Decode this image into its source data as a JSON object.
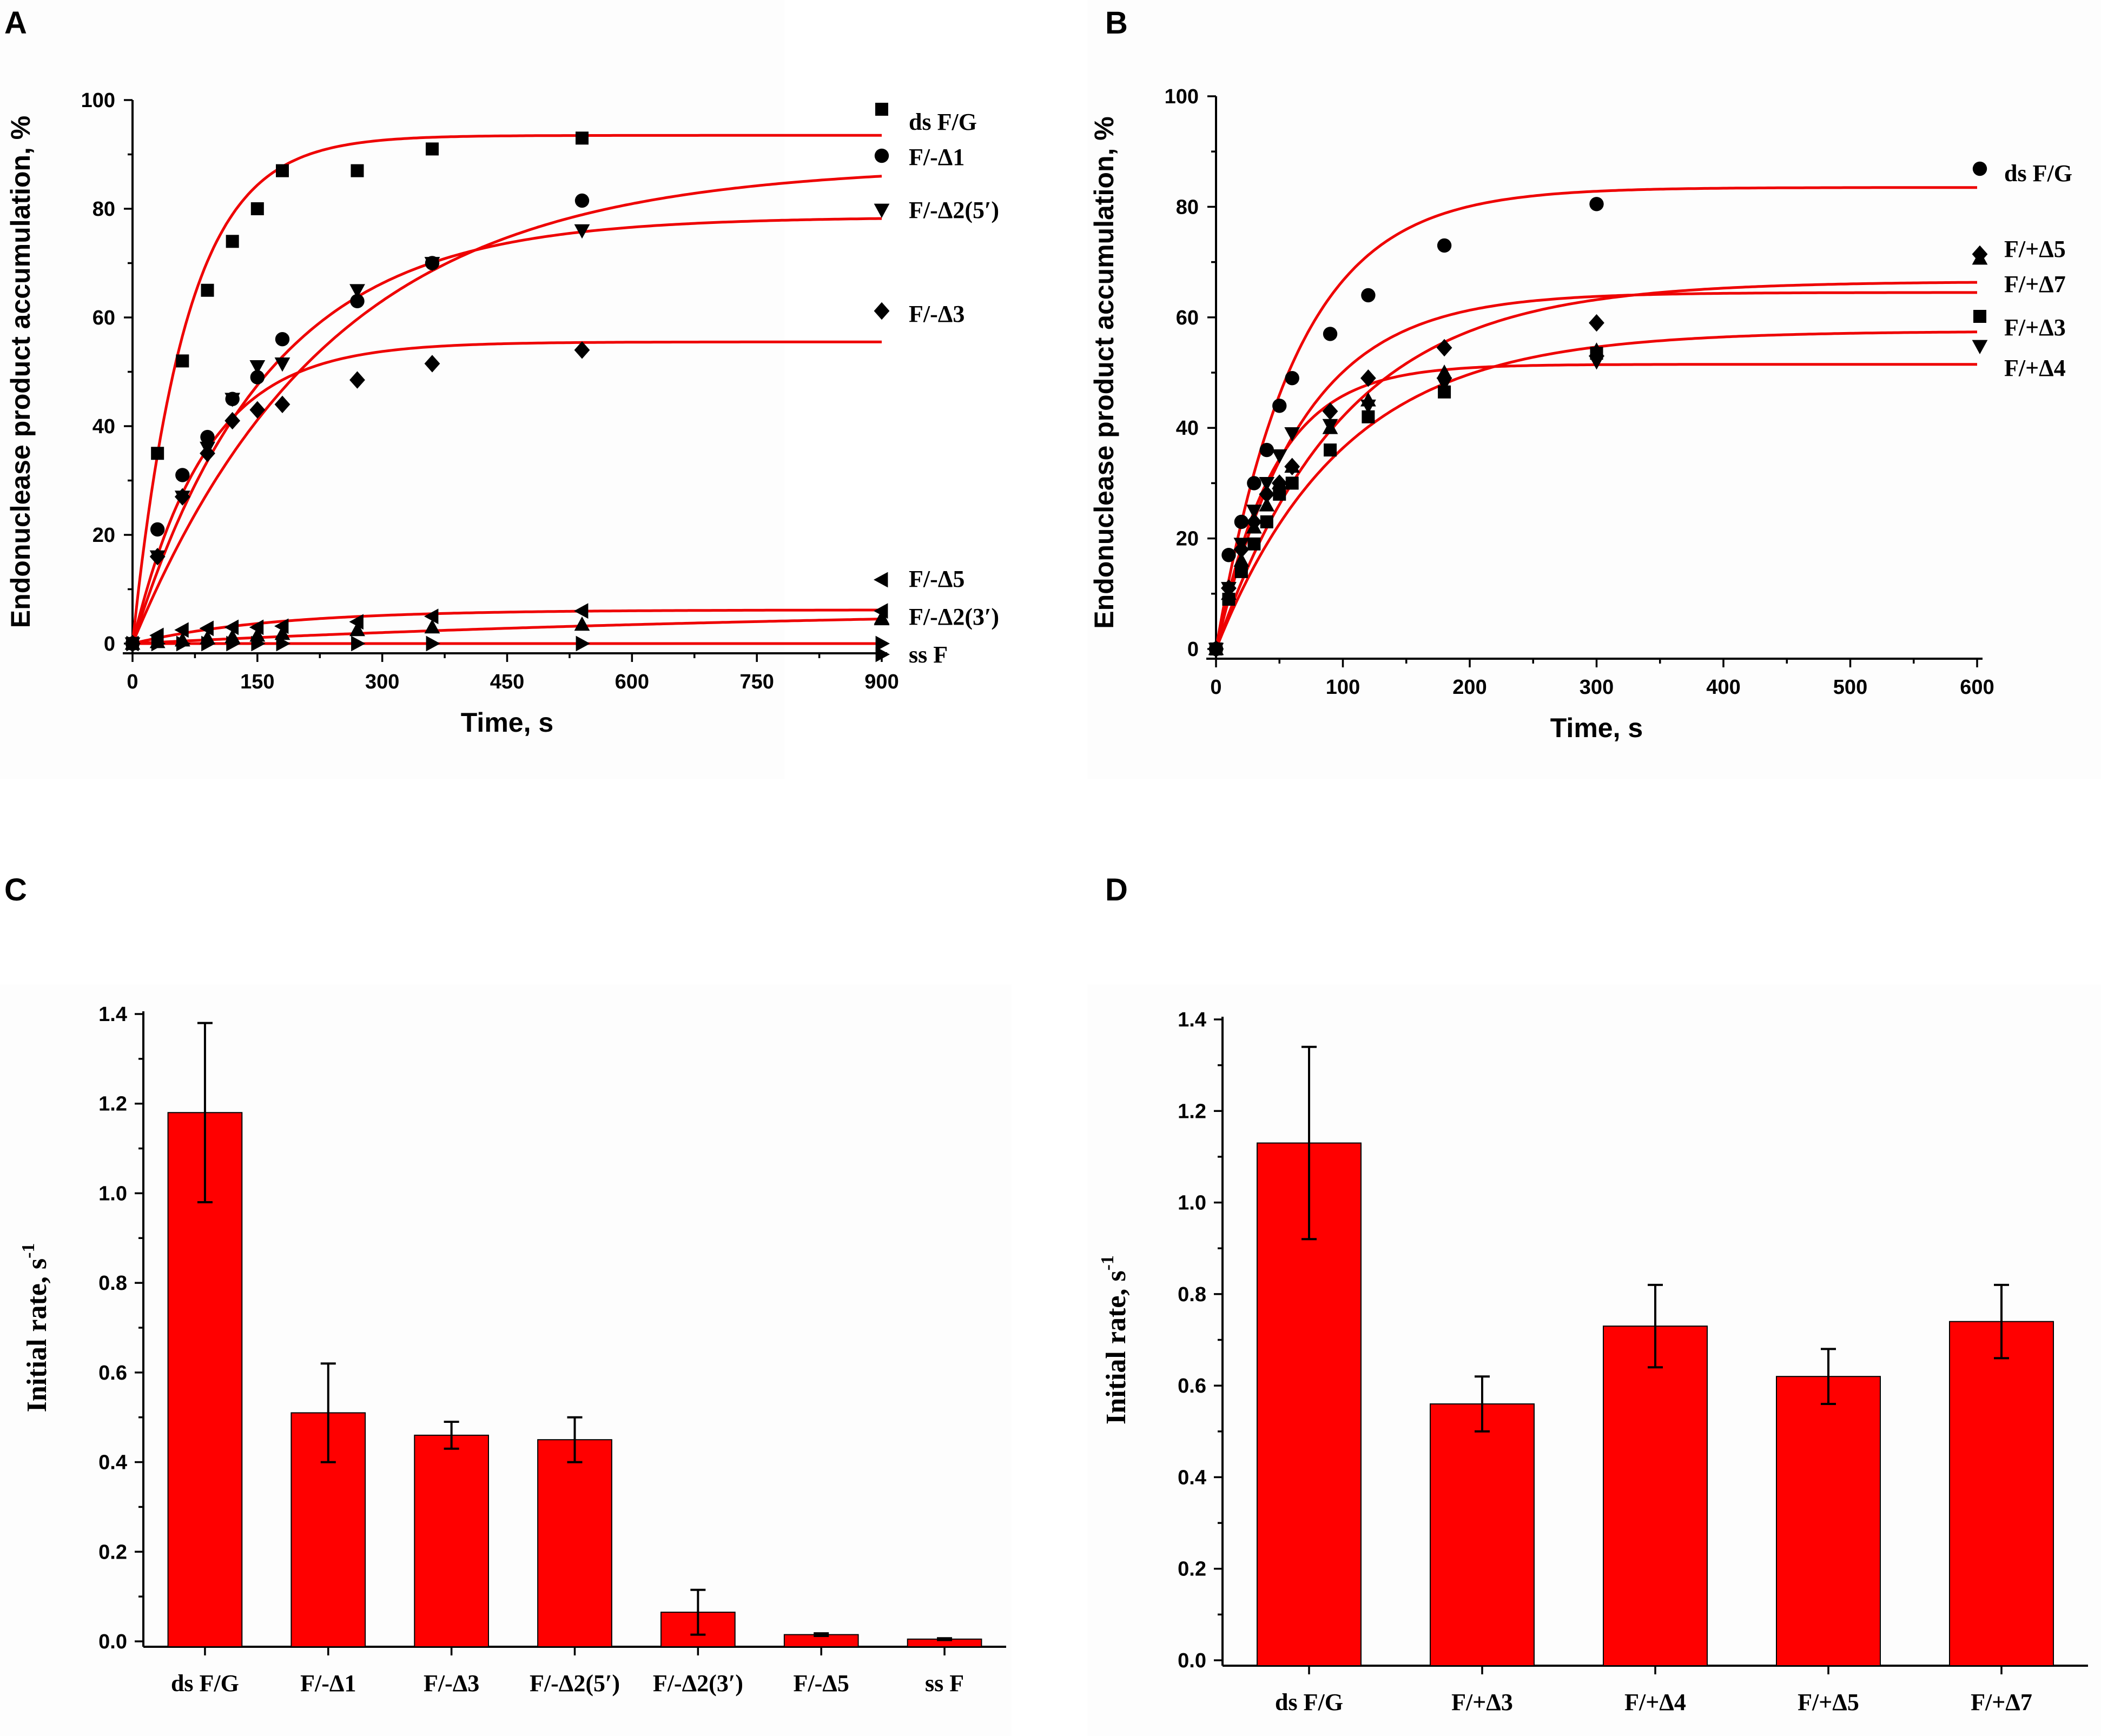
{
  "colors": {
    "fit": "#ee0000",
    "bar": "#ff0000",
    "marker": "#000000",
    "axis": "#000000"
  },
  "chart_data": [
    {
      "panel": "A",
      "type": "scatter",
      "title": "",
      "xlabel": "Time, s",
      "ylabel": "Endonuclease product accumulation, %",
      "xlim": [
        0,
        900
      ],
      "ylim": [
        0,
        100
      ],
      "xticks": [
        0,
        150,
        300,
        450,
        600,
        750,
        900
      ],
      "yticks": [
        0,
        20,
        40,
        60,
        80,
        100
      ],
      "legend_position": "right",
      "series": [
        {
          "name": "ds F/G",
          "marker": "square",
          "x": [
            0,
            30,
            60,
            90,
            120,
            150,
            180,
            270,
            360,
            540
          ],
          "y": [
            0,
            35,
            52,
            65,
            74,
            80,
            87,
            87,
            91,
            93
          ],
          "fit": {
            "ymax": 93.5,
            "k": 0.0155
          }
        },
        {
          "name": "F/-Δ1",
          "marker": "circle",
          "x": [
            0,
            30,
            60,
            90,
            120,
            150,
            180,
            270,
            360,
            540
          ],
          "y": [
            0,
            21,
            31,
            38,
            45,
            49,
            56,
            63,
            70,
            81.5
          ],
          "fit": {
            "ymax": 88,
            "k": 0.0042
          }
        },
        {
          "name": "F/-Δ2(5′)",
          "marker": "triangle-down",
          "x": [
            0,
            30,
            60,
            90,
            120,
            150,
            180,
            270,
            360,
            540
          ],
          "y": [
            0,
            16,
            27,
            36,
            45,
            51,
            51.5,
            65,
            70,
            76
          ],
          "fit": {
            "ymax": 78.5,
            "k": 0.0062
          }
        },
        {
          "name": "F/-Δ3",
          "marker": "diamond",
          "x": [
            0,
            30,
            60,
            90,
            120,
            150,
            180,
            270,
            360,
            540
          ],
          "y": [
            0,
            16,
            27,
            35,
            41,
            43,
            44,
            48.5,
            51.5,
            54
          ],
          "fit": {
            "ymax": 55.5,
            "k": 0.0115
          }
        },
        {
          "name": "F/-Δ5",
          "marker": "triangle-left",
          "x": [
            0,
            30,
            60,
            90,
            120,
            150,
            180,
            270,
            360,
            540,
            900
          ],
          "y": [
            0,
            1.5,
            2.5,
            2.8,
            3,
            3,
            3.2,
            4,
            5,
            6,
            6
          ],
          "fit": {
            "ymax": 6.2,
            "k": 0.006
          }
        },
        {
          "name": "F/-Δ2(3′)",
          "marker": "triangle-up",
          "x": [
            0,
            30,
            60,
            90,
            120,
            150,
            180,
            270,
            360,
            540,
            900
          ],
          "y": [
            0,
            0.3,
            0.6,
            1,
            1.2,
            1.5,
            1.8,
            2.5,
            3,
            3.5,
            4.5
          ],
          "fit": {
            "ymax": 7.2,
            "k": 0.0011
          }
        },
        {
          "name": "ss F",
          "marker": "triangle-right",
          "x": [
            0,
            30,
            60,
            90,
            120,
            150,
            180,
            270,
            360,
            540,
            900
          ],
          "y": [
            0,
            0,
            0,
            0,
            0,
            0,
            0,
            0,
            0,
            0,
            0
          ],
          "fit": {
            "ymax": 0,
            "k": 0.01
          }
        }
      ]
    },
    {
      "panel": "B",
      "type": "scatter",
      "title": "",
      "xlabel": "Time, s",
      "ylabel": "Endonuclease product accumulation, %",
      "xlim": [
        0,
        600
      ],
      "ylim": [
        0,
        100
      ],
      "xticks": [
        0,
        100,
        200,
        300,
        400,
        500,
        600
      ],
      "yticks": [
        0,
        20,
        40,
        60,
        80,
        100
      ],
      "legend_position": "right",
      "series": [
        {
          "name": "ds F/G",
          "marker": "circle",
          "x": [
            0,
            10,
            20,
            30,
            40,
            50,
            60,
            90,
            120,
            180,
            300
          ],
          "y": [
            0,
            17,
            23,
            30,
            36,
            44,
            49,
            57,
            64,
            73,
            80.5
          ],
          "fit": {
            "ymax": 83.5,
            "k": 0.016
          }
        },
        {
          "name": "F/+Δ5",
          "marker": "diamond",
          "x": [
            0,
            10,
            20,
            30,
            40,
            50,
            60,
            90,
            120,
            180,
            300
          ],
          "y": [
            0,
            11,
            18,
            23,
            28,
            30,
            33,
            43,
            49,
            54.5,
            59
          ],
          "fit": {
            "ymax": 64.5,
            "k": 0.015
          }
        },
        {
          "name": "F/+Δ7",
          "marker": "triangle-up",
          "x": [
            0,
            10,
            20,
            30,
            40,
            50,
            60,
            90,
            120,
            180,
            300
          ],
          "y": [
            0,
            10,
            16,
            22,
            26,
            30,
            33,
            40,
            45,
            50,
            54
          ],
          "fit": {
            "ymax": 66.5,
            "k": 0.01
          }
        },
        {
          "name": "F/+Δ3",
          "marker": "square",
          "x": [
            0,
            10,
            20,
            30,
            40,
            50,
            60,
            90,
            120,
            180,
            300
          ],
          "y": [
            0,
            9,
            14,
            19,
            23,
            28,
            30,
            36,
            42,
            46.5,
            53.5
          ],
          "fit": {
            "ymax": 57.5,
            "k": 0.01
          }
        },
        {
          "name": "F/+Δ4",
          "marker": "triangle-down",
          "x": [
            0,
            10,
            20,
            30,
            40,
            50,
            60,
            90,
            120,
            180,
            300
          ],
          "y": [
            0,
            11,
            19,
            25,
            30,
            35,
            39,
            40.5,
            44,
            48,
            52
          ],
          "fit": {
            "ymax": 51.5,
            "k": 0.022
          }
        }
      ]
    },
    {
      "panel": "C",
      "type": "bar",
      "title": "",
      "xlabel": "",
      "ylabel": "Initial rate, s",
      "ylabel_sup": "-1",
      "ylim": [
        0,
        1.4
      ],
      "yticks": [
        0.0,
        0.2,
        0.4,
        0.6,
        0.8,
        1.0,
        1.2,
        1.4
      ],
      "ytick_labels": [
        "0.0",
        "0.2",
        "0.4",
        "0.6",
        "0.8",
        "1.0",
        "1.2",
        "1.4"
      ],
      "categories": [
        "ds F/G",
        "F/-Δ1",
        "F/-Δ3",
        "F/-Δ2(5′)",
        "F/-Δ2(3′)",
        "F/-Δ5",
        "ss F"
      ],
      "values": [
        1.18,
        0.51,
        0.46,
        0.45,
        0.065,
        0.015,
        0.005
      ],
      "errors": [
        0.2,
        0.11,
        0.03,
        0.05,
        0.05,
        0.003,
        0.002
      ]
    },
    {
      "panel": "D",
      "type": "bar",
      "title": "",
      "xlabel": "",
      "ylabel": "Initial rate, s",
      "ylabel_sup": "-1",
      "ylim": [
        0,
        1.4
      ],
      "yticks": [
        0.0,
        0.2,
        0.4,
        0.6,
        0.8,
        1.0,
        1.2,
        1.4
      ],
      "ytick_labels": [
        "0.0",
        "0.2",
        "0.4",
        "0.6",
        "0.8",
        "1.0",
        "1.2",
        "1.4"
      ],
      "categories": [
        "ds F/G",
        "F/+Δ3",
        "F/+Δ4",
        "F/+Δ5",
        "F/+Δ7"
      ],
      "values": [
        1.13,
        0.56,
        0.73,
        0.62,
        0.74
      ],
      "errors": [
        0.21,
        0.06,
        0.09,
        0.06,
        0.08
      ]
    }
  ]
}
